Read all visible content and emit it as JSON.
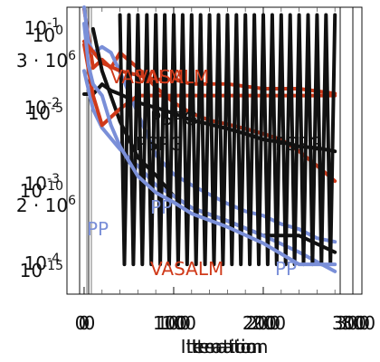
{
  "chart_data": [
    {
      "type": "line",
      "x_range": [
        -5,
        300
      ],
      "y_scale": "log",
      "y_range": [
        5e-07,
        5e-06
      ],
      "xlabel": "Iteration",
      "ylabel": "",
      "x_ticks": [
        "0",
        "100",
        "200",
        "300"
      ],
      "y_ticks": [
        "3 · 10^6",
        "2 · 10^6"
      ],
      "series": [
        {
          "name": "VASALM",
          "color": "#d03a1a",
          "line_width": 4,
          "x": [
            0,
            10,
            20,
            40,
            60,
            80,
            100,
            120,
            160,
            200,
            240,
            280
          ],
          "y": [
            3.8e-06,
            3.5e-06,
            3.2e-06,
            3e-06,
            2.9e-06,
            2.8e-06,
            2.8e-06,
            2.7e-06,
            2.7e-06,
            2.6e-06,
            2.6e-06,
            2.5e-06
          ]
        },
        {
          "name": "PSPG",
          "color": "#111111",
          "line_width": 4,
          "x": [
            10,
            20,
            40,
            60,
            80,
            100,
            120,
            160,
            200,
            240,
            280
          ],
          "y": [
            4.2e-06,
            3e-06,
            2e-06,
            1.5e-06,
            1.3e-06,
            1.1e-06,
            1e-06,
            9e-07,
            8e-07,
            8e-07,
            7e-07
          ]
        },
        {
          "name": "PP",
          "color": "#7a8fd8",
          "line_width": 4,
          "x": [
            0,
            10,
            20,
            40,
            60,
            80,
            100,
            120,
            160,
            200,
            240,
            280
          ],
          "y": [
            3e-06,
            2.2e-06,
            1.9e-06,
            1.6e-06,
            1.4e-06,
            1.2e-06,
            1.1e-06,
            1e-06,
            9e-07,
            8e-07,
            7e-07,
            6e-07
          ]
        }
      ]
    },
    {
      "type": "line",
      "x_range": [
        -5,
        300
      ],
      "y_scale": "log",
      "y_range": [
        5e-05,
        0.1
      ],
      "xlabel": "Iteration",
      "ylabel": "",
      "x_ticks": [
        "0",
        "100",
        "200",
        "300"
      ],
      "y_ticks": [
        "10^{-1}",
        "10^{-2}",
        "10^{-3}",
        "10^{-4}"
      ],
      "series": [
        {
          "name": "VASALM",
          "color": "#d03a1a",
          "line_width": 4,
          "x": [
            0,
            5,
            10,
            20,
            30,
            40,
            60,
            80,
            100,
            120,
            140,
            160,
            180,
            200,
            220,
            240,
            260,
            280
          ],
          "y": [
            0.095,
            0.045,
            0.02,
            0.025,
            0.02,
            0.03,
            0.02,
            0.012,
            0.008,
            0.006,
            0.005,
            0.0045,
            0.004,
            0.0035,
            0.003,
            0.0022,
            0.0015,
            0.001
          ]
        },
        {
          "name": "PSPG",
          "color": "#111111",
          "line_width": 4,
          "x": [
            0,
            10,
            20,
            30,
            40,
            60,
            80,
            100,
            120,
            140,
            160,
            180,
            200,
            220,
            240,
            260,
            280
          ],
          "y": [
            0.01,
            0.01,
            0.013,
            0.011,
            0.01,
            0.008,
            0.007,
            0.006,
            0.005,
            0.0045,
            0.004,
            0.0035,
            0.003,
            0.0028,
            0.0025,
            0.0024,
            0.0022
          ]
        },
        {
          "name": "PP",
          "color": "#7a8fd8",
          "line_width": 4,
          "x": [
            0,
            5,
            10,
            20,
            30,
            40,
            60,
            80,
            100,
            120,
            140,
            160,
            180,
            200,
            220,
            240,
            260,
            280
          ],
          "y": [
            0.1,
            0.04,
            0.03,
            0.035,
            0.03,
            0.018,
            0.006,
            0.002,
            0.0012,
            0.0009,
            0.0007,
            0.00055,
            0.00045,
            0.0004,
            0.00032,
            0.00028,
            0.00022,
            0.0002
          ]
        }
      ]
    },
    {
      "type": "line",
      "x_range": [
        -5,
        300
      ],
      "y_scale": "log",
      "y_range": [
        2e-17,
        1e-15
      ],
      "xlabel": "Iteration",
      "ylabel": "",
      "x_ticks": [
        "0",
        "100",
        "200",
        "300"
      ],
      "y_ticks": [
        "10^0",
        "10^{-5}",
        "10^{-10}",
        "10^{-15}"
      ],
      "series": [
        {
          "name": "VASALM",
          "color": "#d03a1a",
          "line_width": 4,
          "x": [
            0,
            10,
            20,
            40,
            60,
            80,
            100,
            120,
            160,
            200,
            240,
            280
          ],
          "y": [
            6e-16,
            3e-16,
            2e-16,
            2.5e-16,
            3e-16,
            3e-16,
            3e-16,
            3e-16,
            3e-16,
            3e-16,
            3e-16,
            3e-16
          ]
        },
        {
          "name": "PSPG",
          "color": "#111111",
          "line_width": 4,
          "x": [
            40,
            45,
            50,
            55,
            60,
            65,
            70,
            75,
            80,
            85,
            90,
            95,
            100,
            105,
            110,
            115,
            120,
            125,
            130,
            135,
            140,
            145,
            150,
            155,
            160,
            165,
            170,
            175,
            180,
            185,
            190,
            195,
            200,
            205,
            210,
            215,
            220,
            225,
            230,
            235,
            240,
            245,
            250,
            255,
            260,
            265,
            270,
            275,
            280
          ],
          "y": [
            9e-16,
            3e-17,
            9e-16,
            3e-17,
            9e-16,
            3e-17,
            9e-16,
            3e-17,
            9e-16,
            3e-17,
            9e-16,
            3e-17,
            9e-16,
            3e-17,
            9e-16,
            3e-17,
            9e-16,
            3e-17,
            9e-16,
            3e-17,
            9e-16,
            3e-17,
            9e-16,
            3e-17,
            9e-16,
            3e-17,
            9e-16,
            3e-17,
            9e-16,
            3e-17,
            9e-16,
            3e-17,
            9e-16,
            3e-17,
            9e-16,
            3e-17,
            9e-16,
            3e-17,
            9e-16,
            3e-17,
            9e-16,
            3e-17,
            9e-16,
            3e-17,
            9e-16,
            3e-17,
            9e-16,
            3e-17,
            9e-16
          ]
        },
        {
          "name": "PP",
          "color": "#7a8fd8",
          "line_width": 4,
          "x": [
            0,
            5,
            10,
            20,
            30,
            40,
            60,
            80,
            100,
            120,
            160,
            200,
            240,
            280
          ],
          "y": [
            8e-16,
            4.5e-16,
            3.5e-16,
            3e-16,
            2e-16,
            1.5e-16,
            1e-16,
            8e-17,
            7e-17,
            6e-17,
            5e-17,
            4e-17,
            3e-17,
            3e-17
          ]
        }
      ]
    }
  ],
  "series_label_text": {
    "vasalm": "VASALM",
    "pspg": "PSPG",
    "pp": "PP"
  }
}
